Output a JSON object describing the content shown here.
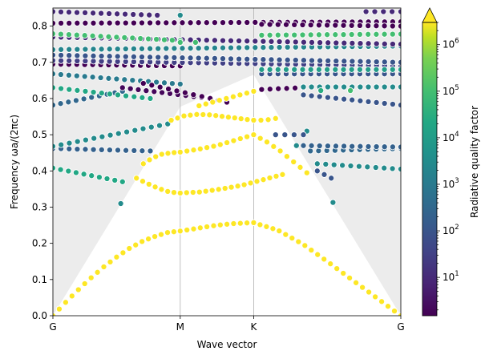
{
  "chart_data": {
    "type": "scatter",
    "xlabel": "Wave vector",
    "ylabel": "Frequency ωa/(2πc)",
    "colorbar_label": "Radiative quality factor",
    "ylim": [
      0,
      0.85
    ],
    "xlim": [
      0,
      1
    ],
    "x_ticks": [
      {
        "label": "G",
        "value": 0
      },
      {
        "label": "M",
        "value": 0.366
      },
      {
        "label": "K",
        "value": 0.577
      },
      {
        "label": "G",
        "value": 1
      }
    ],
    "y_ticks": [
      "0.0",
      "0.1",
      "0.2",
      "0.3",
      "0.4",
      "0.5",
      "0.6",
      "0.7",
      "0.8"
    ],
    "colorbar_scale": "log",
    "colorbar_range": [
      1.5,
      3000000
    ],
    "colorbar_ticks": [
      {
        "base": "10",
        "exp": "1",
        "value": 10
      },
      {
        "base": "10",
        "exp": "2",
        "value": 100
      },
      {
        "base": "10",
        "exp": "3",
        "value": 1000
      },
      {
        "base": "10",
        "exp": "4",
        "value": 10000
      },
      {
        "base": "10",
        "exp": "5",
        "value": 100000
      },
      {
        "base": "10",
        "exp": "6",
        "value": 1000000
      }
    ],
    "colormap": "viridis",
    "light_cone_color": "#ececec",
    "grid": "vertical lines at M and K",
    "guided_bands": [
      {
        "y": [
          0.0,
          0.037,
          0.072,
          0.105,
          0.135,
          0.162,
          0.186,
          0.205,
          0.219,
          0.23,
          0.234
        ],
        "x_range": [
          0,
          0.366
        ],
        "q": 3000000
      },
      {
        "y": [
          0.234,
          0.242,
          0.25,
          0.255,
          0.257
        ],
        "x_range": [
          0.366,
          0.577
        ],
        "q": 3000000
      },
      {
        "y": [
          0.257,
          0.236,
          0.198,
          0.15,
          0.1,
          0.05,
          0.0
        ],
        "x_range": [
          0.577,
          1.0
        ],
        "q": 3000000
      },
      {
        "y": [
          0.38,
          0.365,
          0.352,
          0.342,
          0.339
        ],
        "x_range": [
          0.24,
          0.366
        ],
        "q": 3000000
      },
      {
        "y": [
          0.339,
          0.342,
          0.35,
          0.36,
          0.375,
          0.39
        ],
        "x_range": [
          0.366,
          0.66
        ],
        "q": 3000000
      },
      {
        "y": [
          0.42,
          0.436,
          0.446,
          0.45,
          0.452
        ],
        "x_range": [
          0.26,
          0.366
        ],
        "q": 3000000
      },
      {
        "y": [
          0.452,
          0.46,
          0.47,
          0.485,
          0.5
        ],
        "x_range": [
          0.366,
          0.577
        ],
        "q": 3000000
      },
      {
        "y": [
          0.5,
          0.48,
          0.455,
          0.425,
          0.395
        ],
        "x_range": [
          0.577,
          0.73
        ],
        "q": 3000000
      },
      {
        "y": [
          0.54,
          0.552,
          0.556,
          0.555
        ],
        "x_range": [
          0.34,
          0.45
        ],
        "q": 3000000
      },
      {
        "y": [
          0.555,
          0.55,
          0.545,
          0.54
        ],
        "x_range": [
          0.45,
          0.577
        ],
        "q": 3000000
      },
      {
        "y": [
          0.54,
          0.54,
          0.545
        ],
        "x_range": [
          0.577,
          0.64
        ],
        "q": 3000000
      },
      {
        "y": [
          0.58,
          0.59,
          0.6,
          0.61,
          0.62
        ],
        "x_range": [
          0.42,
          0.577
        ],
        "q": 3000000
      }
    ],
    "leaky_bands": [
      {
        "y_start": 0.408,
        "y_end": 0.37,
        "x_range": [
          0,
          0.2
        ],
        "q": 20000
      },
      {
        "y_start": 0.462,
        "y_end": 0.455,
        "x_range": [
          0,
          0.28
        ],
        "q": 200
      },
      {
        "y_start": 0.468,
        "y_end": 0.53,
        "x_range": [
          0,
          0.33
        ],
        "q": 3000
      },
      {
        "y_start": 0.582,
        "y_end": 0.62,
        "x_range": [
          0,
          0.2
        ],
        "q": 300
      },
      {
        "y_start": 0.63,
        "y_end": 0.6,
        "x_range": [
          0,
          0.28
        ],
        "q": 20000
      },
      {
        "y_start": 0.668,
        "y_end": 0.64,
        "x_range": [
          0,
          0.366
        ],
        "q": 1000
      },
      {
        "y_start": 0.695,
        "y_end": 0.69,
        "x_range": [
          0,
          0.366
        ],
        "q": 1
      },
      {
        "y_start": 0.705,
        "y_end": 0.69,
        "x_range": [
          0,
          1
        ],
        "q": 30
      },
      {
        "y_start": 0.72,
        "y_end": 0.7,
        "x_range": [
          0,
          1
        ],
        "q": 100
      },
      {
        "y_start": 0.735,
        "y_end": 0.745,
        "x_range": [
          0,
          1
        ],
        "q": 2000
      },
      {
        "y_start": 0.77,
        "y_end": 0.75,
        "x_range": [
          0,
          1
        ],
        "q": 10
      },
      {
        "y_start": 0.779,
        "y_end": 0.76,
        "x_range": [
          0,
          0.366
        ],
        "q": 100000
      },
      {
        "y_start": 0.808,
        "y_end": 0.812,
        "x_range": [
          0,
          1
        ],
        "q": 1
      },
      {
        "y_start": 0.84,
        "y_end": 0.83,
        "x_range": [
          0,
          0.3
        ],
        "q": 10
      },
      {
        "y_start": 0.63,
        "y_end": 0.6,
        "x_range": [
          0.2,
          0.45
        ],
        "q": 2
      },
      {
        "y_start": 0.642,
        "y_end": 0.59,
        "x_range": [
          0.26,
          0.5
        ],
        "q": 1
      },
      {
        "y_start": 0.625,
        "y_end": 0.63,
        "x_range": [
          0.6,
          0.72
        ],
        "q": 1
      },
      {
        "y_start": 0.61,
        "y_end": 0.582,
        "x_range": [
          0.72,
          1
        ],
        "q": 100
      },
      {
        "y_start": 0.632,
        "y_end": 0.632,
        "x_range": [
          0.72,
          1
        ],
        "q": 3000
      },
      {
        "y_start": 0.668,
        "y_end": 0.668,
        "x_range": [
          0.6,
          1
        ],
        "q": 100
      },
      {
        "y_start": 0.68,
        "y_end": 0.68,
        "x_range": [
          0.6,
          1
        ],
        "q": 10000
      },
      {
        "y_start": 0.775,
        "y_end": 0.778,
        "x_range": [
          0.6,
          1
        ],
        "q": 100000
      },
      {
        "y_start": 0.805,
        "y_end": 0.8,
        "x_range": [
          0.6,
          1
        ],
        "q": 1
      },
      {
        "y_start": 0.84,
        "y_end": 0.84,
        "x_range": [
          0.9,
          1
        ],
        "q": 10
      },
      {
        "y_start": 0.455,
        "y_end": 0.462,
        "x_range": [
          0.74,
          1
        ],
        "q": 300
      },
      {
        "y_start": 0.42,
        "y_end": 0.405,
        "x_range": [
          0.76,
          1
        ],
        "q": 3000
      },
      {
        "y_start": 0.47,
        "y_end": 0.466,
        "x_range": [
          0.72,
          1
        ],
        "q": 200
      },
      {
        "y_start": 0.47,
        "y_end": 0.51,
        "x_range": [
          0.7,
          0.73
        ],
        "q": 3000
      },
      {
        "y_start": 0.4,
        "y_end": 0.38,
        "x_range": [
          0.76,
          0.8
        ],
        "q": 100
      },
      {
        "y_start": 0.5,
        "y_end": 0.5,
        "x_range": [
          0.64,
          0.72
        ],
        "q": 100
      }
    ],
    "isolated_points": [
      {
        "x": 0.195,
        "y": 0.31,
        "q": 3000
      },
      {
        "x": 0.805,
        "y": 0.313,
        "q": 3000
      },
      {
        "x": 0.77,
        "y": 0.622,
        "q": 30000
      },
      {
        "x": 0.855,
        "y": 0.622,
        "q": 100000
      },
      {
        "x": 0.366,
        "y": 0.755,
        "q": 100000
      },
      {
        "x": 0.41,
        "y": 0.755,
        "q": 100000
      },
      {
        "x": 0.366,
        "y": 0.83,
        "q": 3000
      }
    ]
  }
}
